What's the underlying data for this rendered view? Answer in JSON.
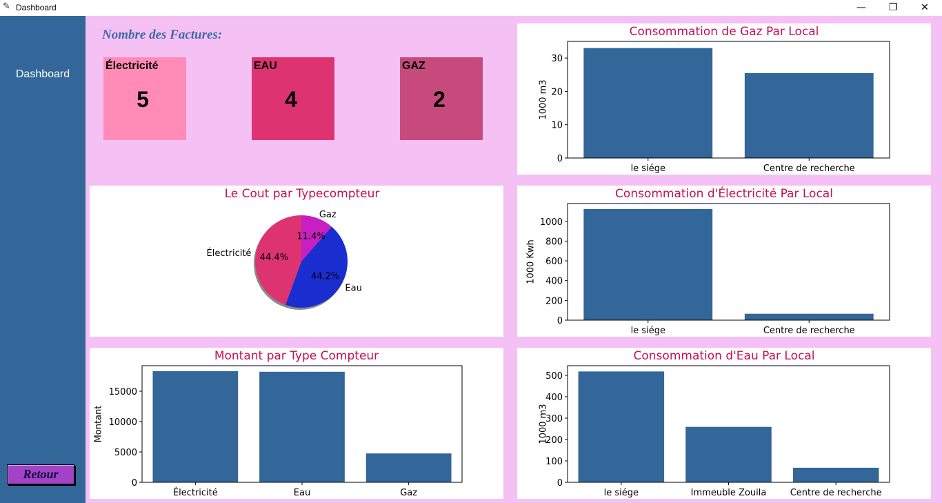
{
  "window": {
    "title": "Dashboard",
    "controls": {
      "minimize": "—",
      "maximize": "❐",
      "close": "✕"
    }
  },
  "sidebar": {
    "dashboard_label": "Dashboard",
    "retour_label": "Retour"
  },
  "factures": {
    "title": "Nombre des Factures:",
    "cards": [
      {
        "label": "Électricité",
        "value": "5",
        "color": "#ff8bb6"
      },
      {
        "label": "EAU",
        "value": "4",
        "color": "#de3371"
      },
      {
        "label": "GAZ",
        "value": "2",
        "color": "#c64b7c"
      }
    ]
  },
  "colors": {
    "bar": "#336699",
    "title": "#c7104f",
    "background": "#f5c1f5"
  },
  "chart_data": [
    {
      "id": "gaz",
      "type": "bar",
      "title": "Consommation de Gaz Par Local",
      "categories": [
        "le siége",
        "Centre de recherche"
      ],
      "values": [
        33,
        25.5
      ],
      "ylabel": "1000 m3",
      "xlabel": "",
      "ylim": [
        0,
        35
      ],
      "yticks": [
        0,
        10,
        20,
        30
      ]
    },
    {
      "id": "cout",
      "type": "pie",
      "title": "Le Cout par Typecompteur",
      "labels": [
        "Gaz",
        "Eau",
        "Électricité"
      ],
      "values": [
        11.4,
        44.2,
        44.4
      ],
      "pct_labels": [
        "11.4%",
        "44.2%",
        "44.4%"
      ],
      "colors": [
        "#c71fc1",
        "#1a2ecf",
        "#de3371"
      ]
    },
    {
      "id": "elec",
      "type": "bar",
      "title": "Consommation d'Électricité Par Local",
      "categories": [
        "le siége",
        "Centre de recherche"
      ],
      "values": [
        1125,
        65
      ],
      "ylabel": "1000 Kwh",
      "xlabel": "",
      "ylim": [
        0,
        1180
      ],
      "yticks": [
        0,
        200,
        400,
        600,
        800,
        1000
      ]
    },
    {
      "id": "montant",
      "type": "bar",
      "title": "Montant par Type Compteur",
      "categories": [
        "Électricité",
        "Eau",
        "Gaz"
      ],
      "values": [
        18300,
        18200,
        4750
      ],
      "ylabel": "Montant",
      "xlabel": "",
      "ylim": [
        0,
        19200
      ],
      "yticks": [
        0,
        5000,
        10000,
        15000
      ]
    },
    {
      "id": "eau",
      "type": "bar",
      "title": "Consommation d'Eau Par Local",
      "categories": [
        "le siége",
        "Immeuble Zouila",
        "Centre de recherche"
      ],
      "values": [
        518,
        259,
        68
      ],
      "ylabel": "1000 m3",
      "xlabel": "",
      "ylim": [
        0,
        545
      ],
      "yticks": [
        0,
        100,
        200,
        300,
        400,
        500
      ]
    }
  ]
}
